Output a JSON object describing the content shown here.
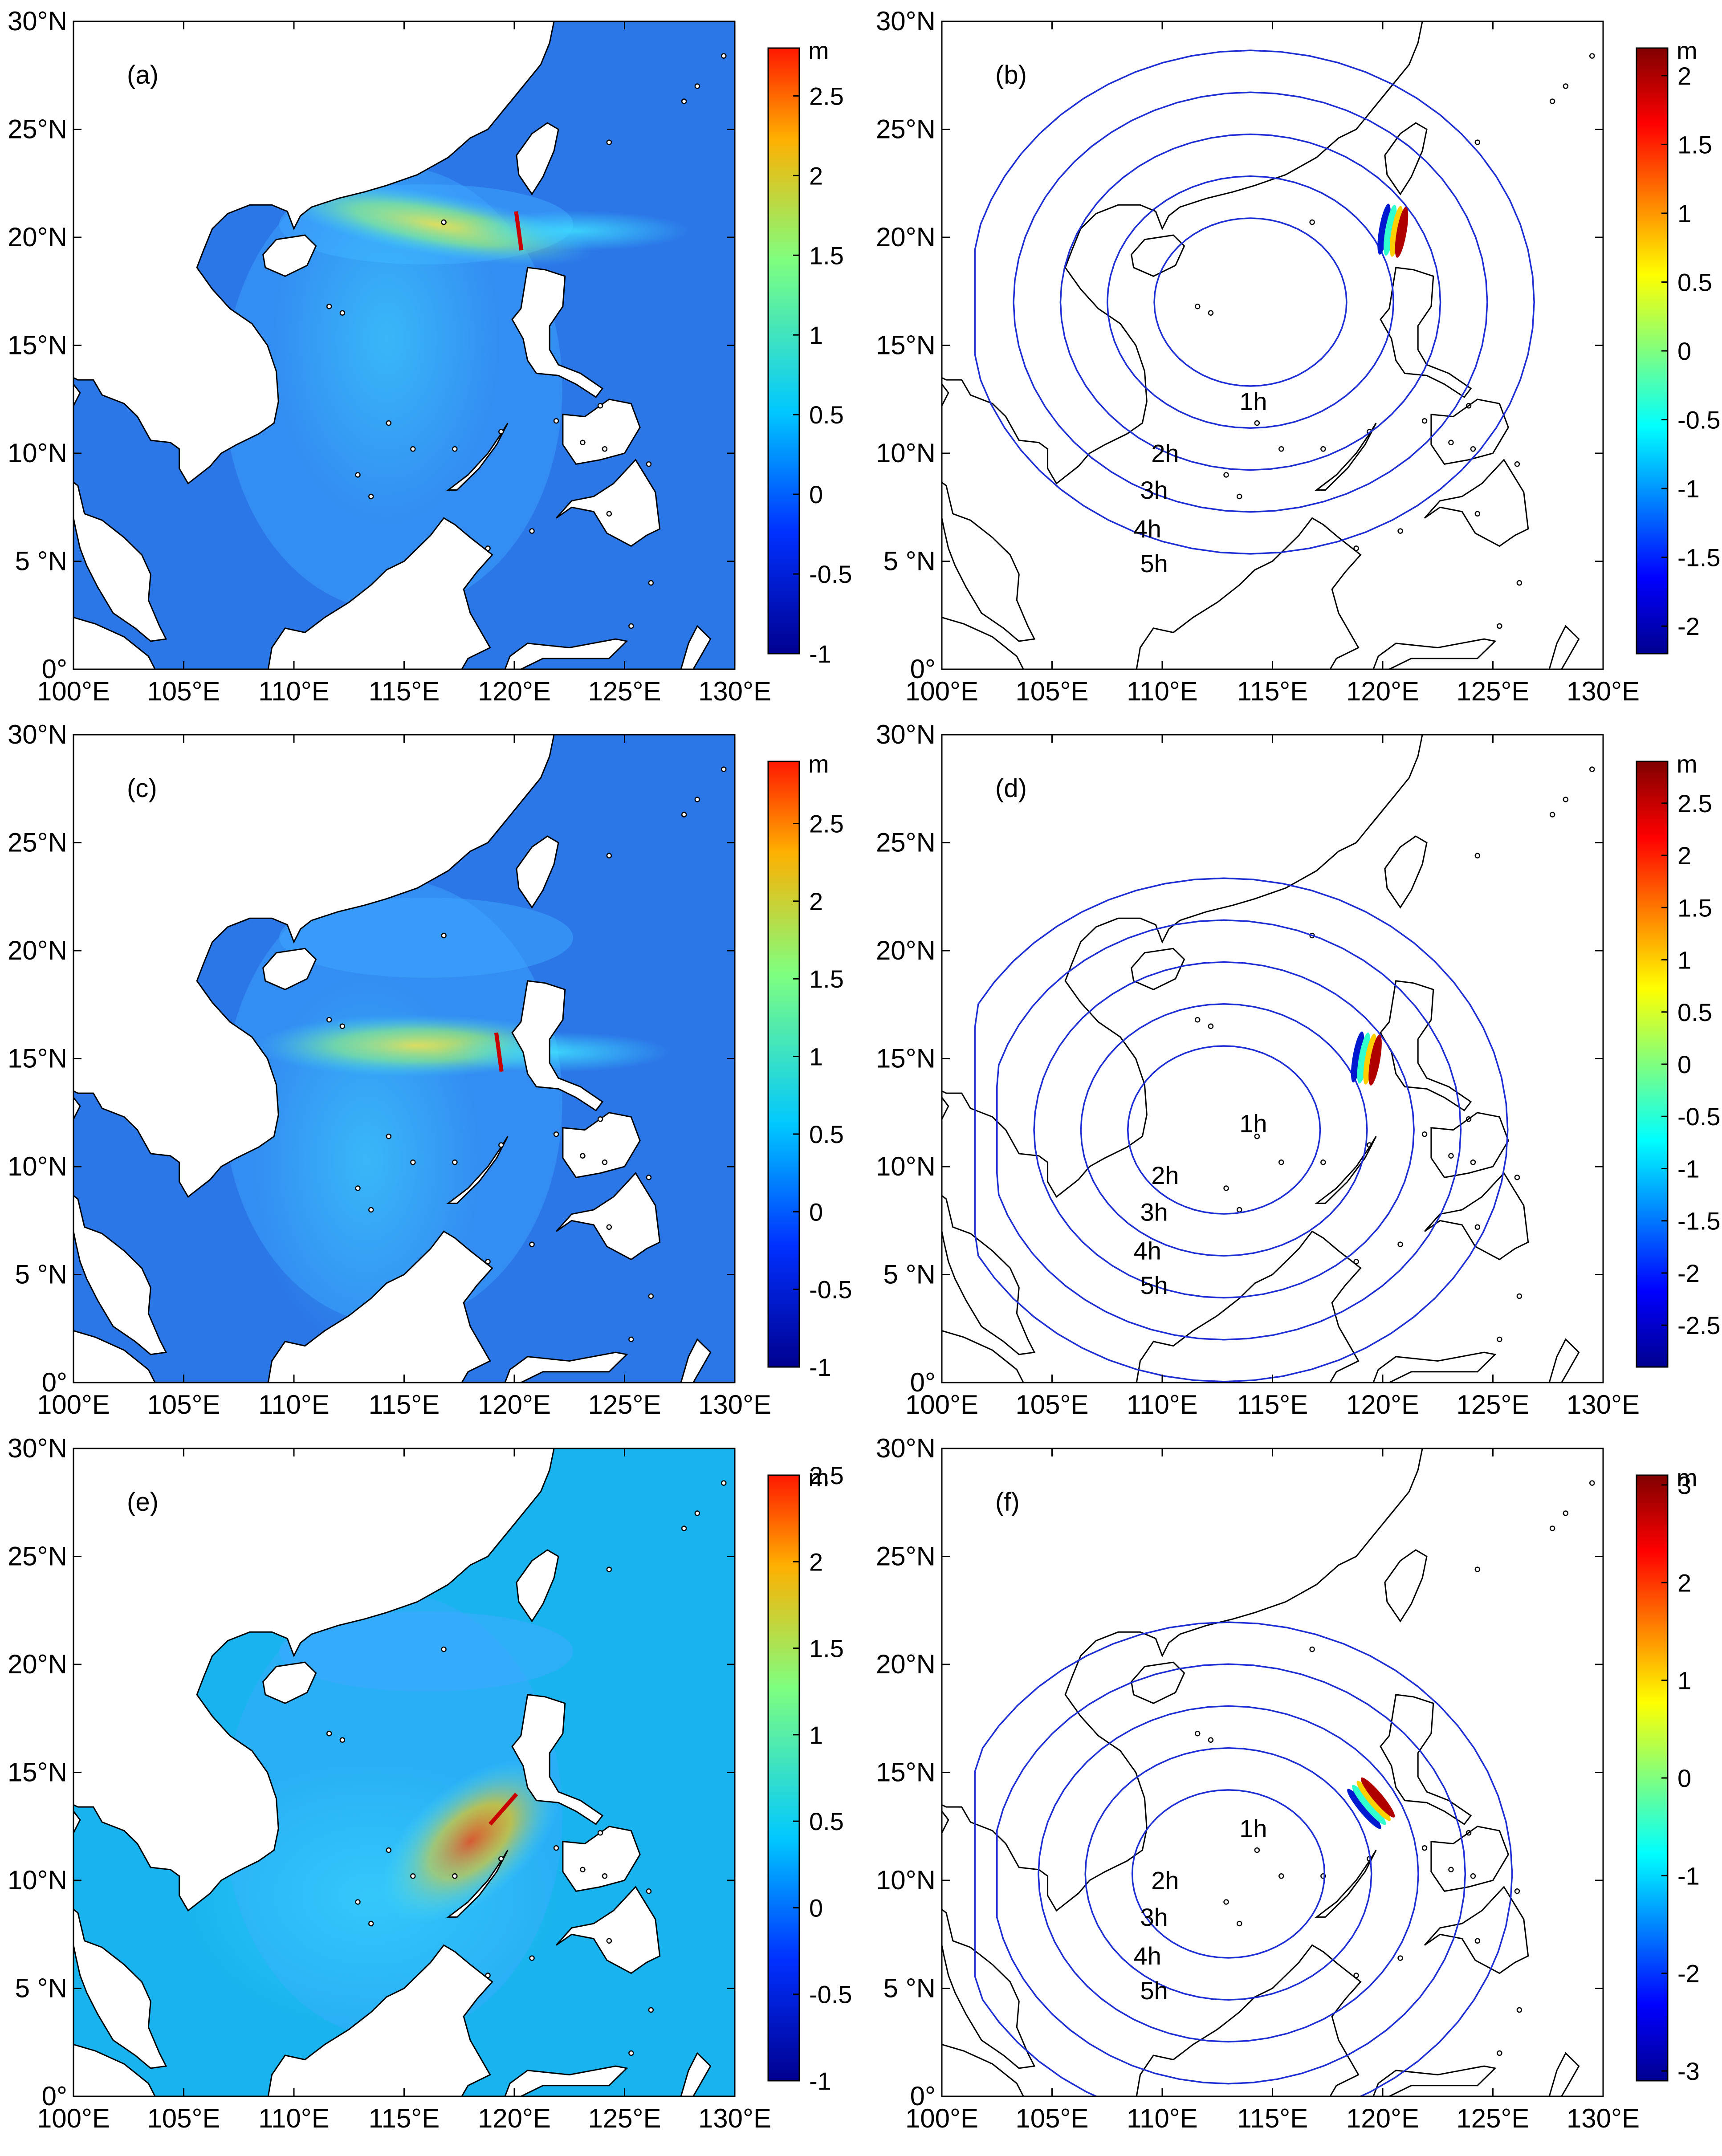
{
  "figure": {
    "x_tick_labels": [
      "100°E",
      "105°E",
      "110°E",
      "115°E",
      "120°E",
      "125°E",
      "130°E"
    ],
    "y_tick_labels": [
      "0°",
      "5 °N",
      "10°N",
      "15°N",
      "20°N",
      "25°N",
      "30°N"
    ],
    "x_range": [
      100,
      130
    ],
    "y_range": [
      0,
      30
    ]
  },
  "colors": {
    "map_fill_a": "#2b77e8",
    "map_fill_e": "#19b4ef",
    "land": "#ffffff",
    "coast": "#000000",
    "contour": "#1f2fd6"
  },
  "panels": [
    {
      "id": "a",
      "label": "(a)",
      "type": "max_amplitude",
      "unit": "m",
      "cbar_ticks": [
        "2.5",
        "2",
        "1.5",
        "1",
        "0.5",
        "0",
        "-0.5",
        "-1"
      ],
      "cbar_range": [
        -1,
        2.8
      ],
      "source": {
        "lon": 120.2,
        "lat": 20.3
      },
      "direction": "west"
    },
    {
      "id": "b",
      "label": "(b)",
      "type": "travel_time",
      "unit": "m",
      "cbar_ticks": [
        "2",
        "1.5",
        "1",
        "0.5",
        "0",
        "-0.5",
        "-1",
        "-1.5",
        "-2"
      ],
      "cbar_range": [
        -2.2,
        2.2
      ],
      "contour_labels": [
        "1h",
        "2h",
        "3h",
        "4h",
        "5h"
      ],
      "source": {
        "lon": 120.5,
        "lat": 20.3
      }
    },
    {
      "id": "c",
      "label": "(c)",
      "type": "max_amplitude",
      "unit": "m",
      "cbar_ticks": [
        "2.5",
        "2",
        "1.5",
        "1",
        "0.5",
        "0",
        "-0.5",
        "-1"
      ],
      "cbar_range": [
        -1,
        2.9
      ],
      "source": {
        "lon": 119.3,
        "lat": 15.3
      },
      "direction": "west"
    },
    {
      "id": "d",
      "label": "(d)",
      "type": "travel_time",
      "unit": "m",
      "cbar_ticks": [
        "2.5",
        "2",
        "1.5",
        "1",
        "0.5",
        "0",
        "-0.5",
        "-1",
        "-1.5",
        "-2",
        "-2.5"
      ],
      "cbar_range": [
        -2.9,
        2.9
      ],
      "contour_labels": [
        "1h",
        "2h",
        "3h",
        "4h",
        "5h"
      ],
      "source": {
        "lon": 119.3,
        "lat": 15.0
      }
    },
    {
      "id": "e",
      "label": "(e)",
      "type": "max_amplitude",
      "unit": "m",
      "cbar_ticks": [
        "2.5",
        "2",
        "1.5",
        "1",
        "0.5",
        "0",
        "-0.5",
        "-1"
      ],
      "cbar_range": [
        -1,
        2.5
      ],
      "source": {
        "lon": 119.5,
        "lat": 13.3
      },
      "direction": "southwest"
    },
    {
      "id": "f",
      "label": "(f)",
      "type": "travel_time",
      "unit": "m",
      "cbar_ticks": [
        "3",
        "2",
        "1",
        "0",
        "-1",
        "-2",
        "-3"
      ],
      "cbar_range": [
        -3.1,
        3.1
      ],
      "contour_labels": [
        "1h",
        "2h",
        "3h",
        "4h",
        "5h"
      ],
      "source": {
        "lon": 119.5,
        "lat": 13.6
      }
    }
  ]
}
